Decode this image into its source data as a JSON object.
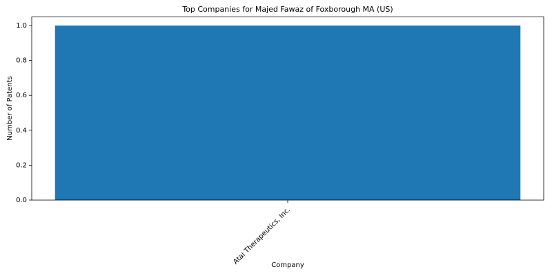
{
  "chart_data": {
    "type": "bar",
    "title": "Top Companies for Majed Fawaz of Foxborough MA (US)",
    "x_label": "Company",
    "y_label": "Number of Patents",
    "categories": [
      "Atai Therapeutics, Inc."
    ],
    "values": [
      1
    ],
    "color": "#1f77b4",
    "ylim": [
      0,
      1.05
    ],
    "yticks": [
      {
        "value": 0,
        "label": "0.0"
      },
      0.2,
      0.4,
      0.6,
      0.8,
      {
        "value": 1,
        "label": "1.0"
      }
    ],
    "grid": false
  }
}
